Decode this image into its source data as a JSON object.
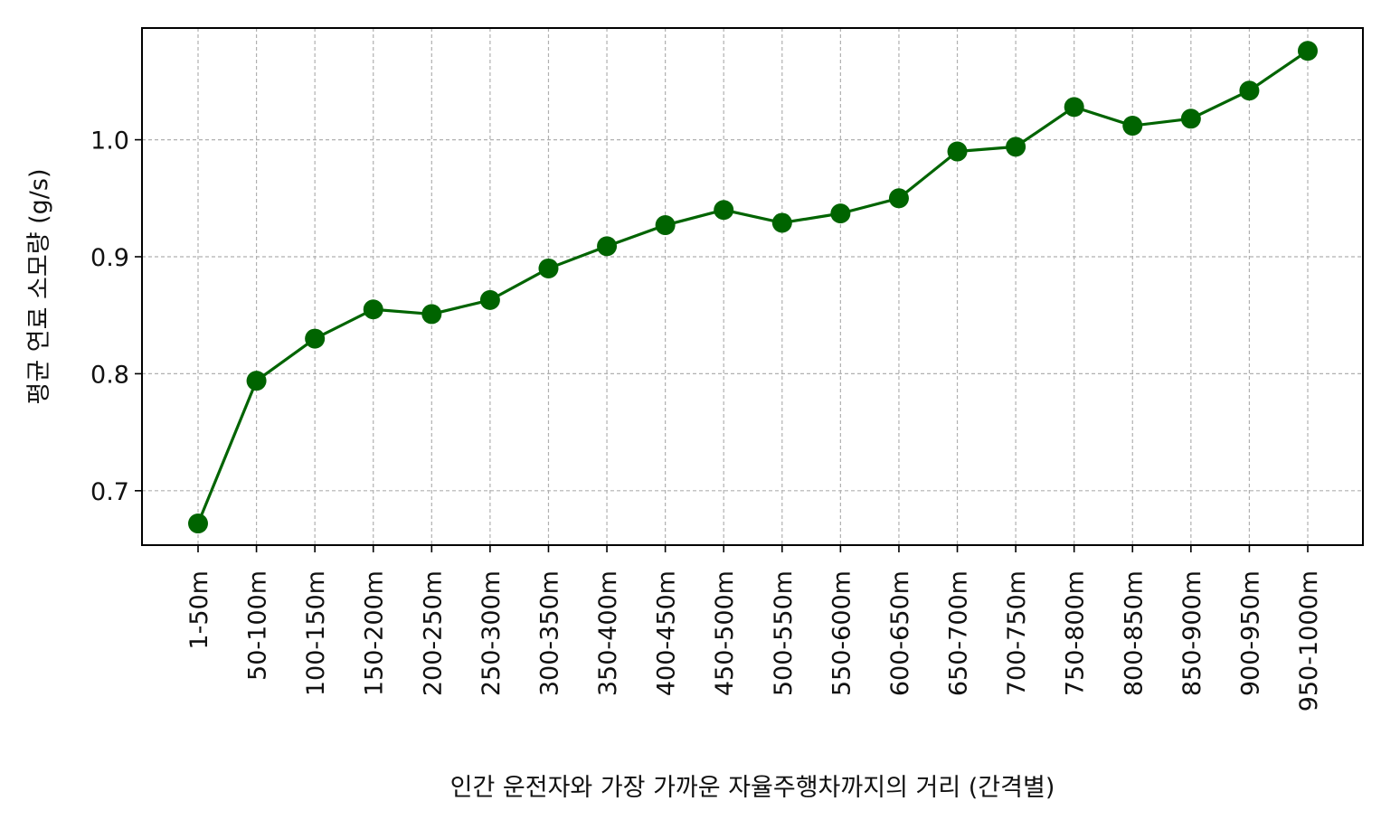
{
  "chart_data": {
    "type": "line",
    "xlabel": "인간 운전자와 가장 가까운 자율주행차까지의 거리 (간격별)",
    "ylabel": "평균 연료 소모량 (g/s)",
    "categories": [
      "1-50m",
      "50-100m",
      "100-150m",
      "150-200m",
      "200-250m",
      "250-300m",
      "300-350m",
      "350-400m",
      "400-450m",
      "450-500m",
      "500-550m",
      "550-600m",
      "600-650m",
      "650-700m",
      "700-750m",
      "750-800m",
      "800-850m",
      "850-900m",
      "900-950m",
      "950-1000m"
    ],
    "series": [
      {
        "values": [
          0.672,
          0.794,
          0.83,
          0.855,
          0.851,
          0.863,
          0.89,
          0.909,
          0.927,
          0.94,
          0.929,
          0.937,
          0.95,
          0.99,
          0.994,
          1.028,
          1.012,
          1.018,
          1.042,
          1.076
        ]
      }
    ],
    "yticks": [
      0.7,
      0.8,
      0.9,
      1.0
    ],
    "ytick_labels": [
      "0.7",
      "0.8",
      "0.9",
      "1.0"
    ],
    "ylim": [
      0.6535,
      1.0955
    ],
    "grid": true,
    "line_color": "#006400",
    "marker": "circle"
  }
}
